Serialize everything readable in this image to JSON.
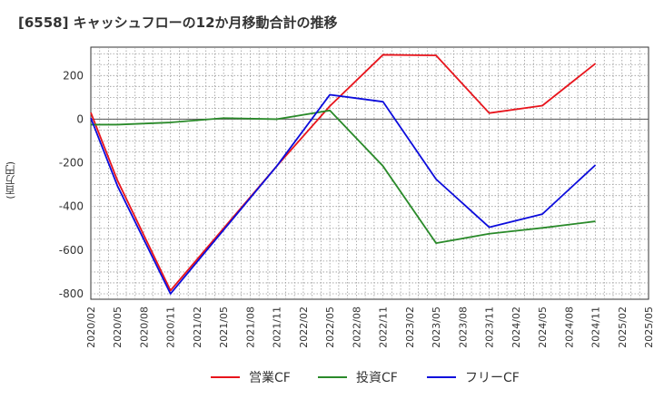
{
  "chart_data": {
    "type": "line",
    "title": "[6558]  キャッシュフローの12か月移動合計の推移",
    "ylabel": "(百万円)",
    "xlabel": "",
    "ylim": [
      -825,
      330
    ],
    "yticks": [
      200,
      0,
      -200,
      -400,
      -600,
      -800
    ],
    "categories": [
      "2020/02",
      "2020/05",
      "2020/08",
      "2020/11",
      "2021/02",
      "2021/05",
      "2021/08",
      "2021/11",
      "2022/02",
      "2022/05",
      "2022/08",
      "2022/11",
      "2023/02",
      "2023/05",
      "2023/08",
      "2023/11",
      "2024/02",
      "2024/05",
      "2024/08",
      "2024/11",
      "2025/02",
      "2025/05"
    ],
    "grid": true,
    "legend": "bottom",
    "series": [
      {
        "name": "営業CF",
        "color": "#e8141c",
        "values": [
          30,
          -280,
          null,
          -785,
          null,
          null,
          null,
          -215,
          null,
          60,
          null,
          295,
          null,
          292,
          null,
          28,
          null,
          62,
          null,
          255,
          null,
          null
        ]
      },
      {
        "name": "投資CF",
        "color": "#2a8a2a",
        "values": [
          -25,
          -25,
          null,
          -15,
          null,
          5,
          null,
          0,
          null,
          40,
          null,
          -215,
          null,
          -568,
          null,
          -525,
          null,
          -498,
          null,
          -468,
          null,
          null
        ]
      },
      {
        "name": "フリーCF",
        "color": "#0c0cdc",
        "values": [
          5,
          -305,
          null,
          -800,
          null,
          null,
          null,
          -215,
          null,
          112,
          null,
          80,
          null,
          -275,
          null,
          -495,
          null,
          -435,
          null,
          -210,
          null,
          null
        ]
      }
    ]
  }
}
